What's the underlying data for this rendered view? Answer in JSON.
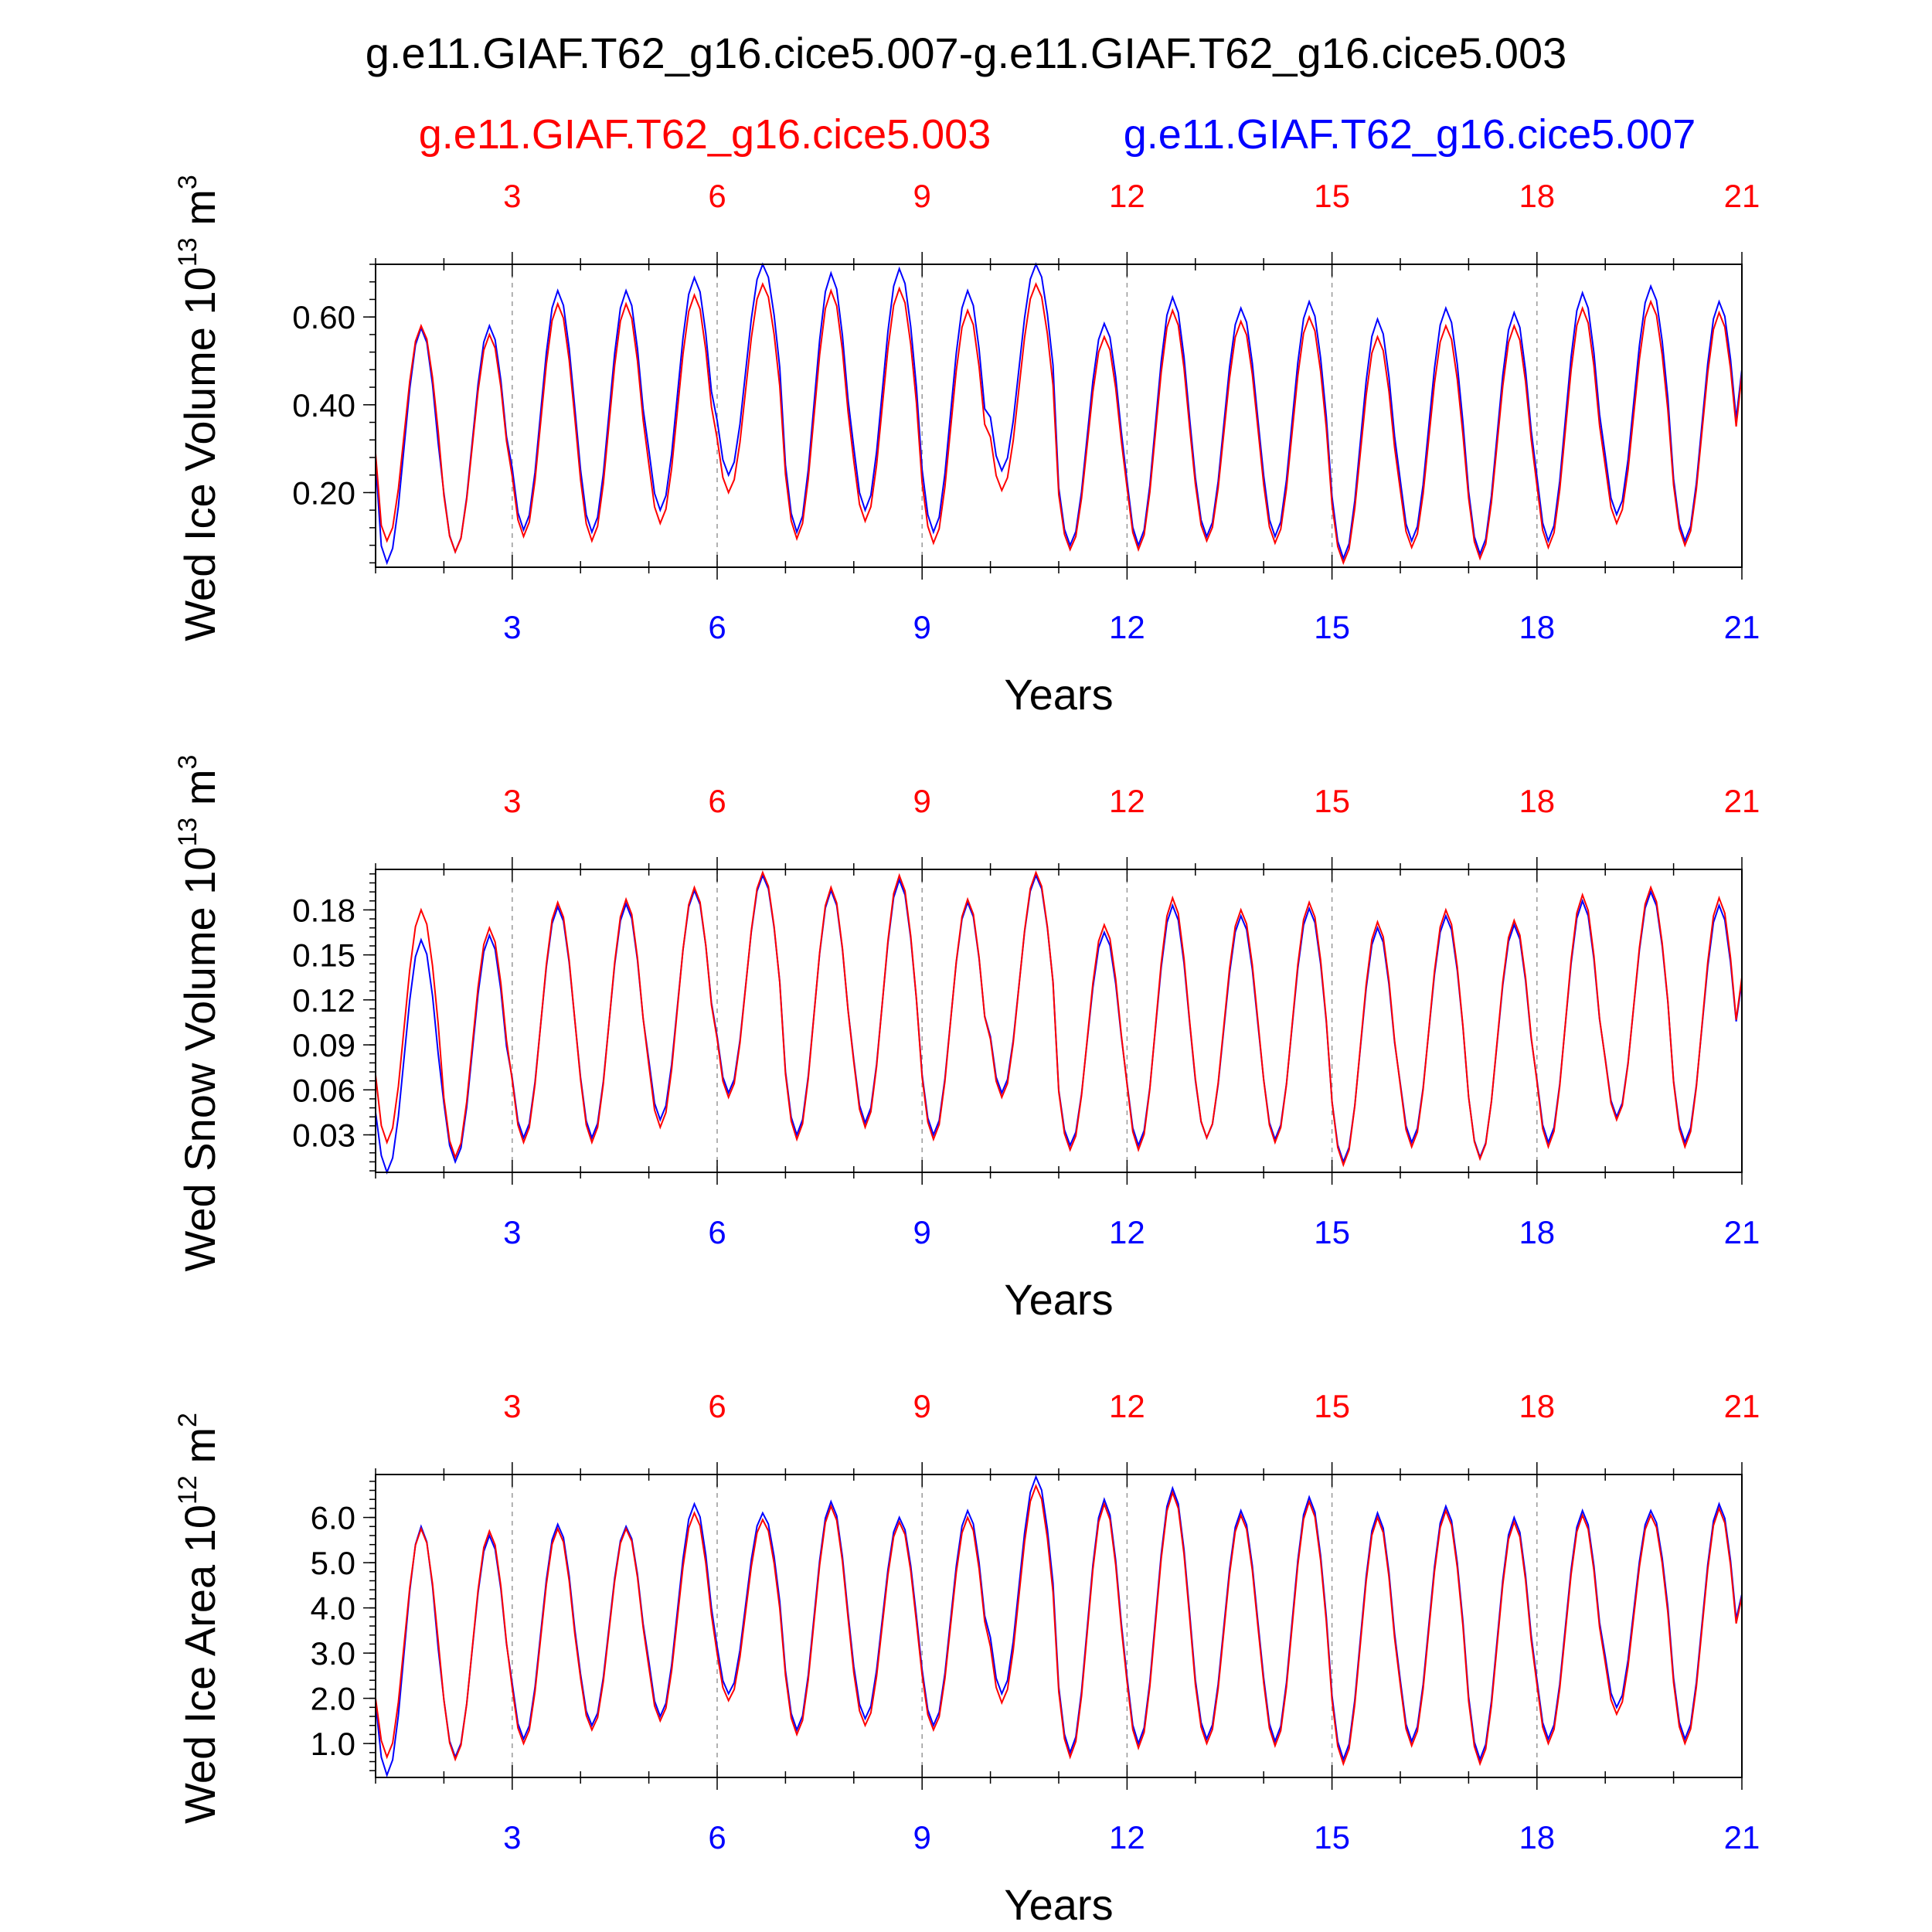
{
  "title": "g.e11.GIAF.T62_g16.cice5.007-g.e11.GIAF.T62_g16.cice5.003",
  "legend": {
    "case_a": "g.e11.GIAF.T62_g16.cice5.003",
    "case_b": "g.e11.GIAF.T62_g16.cice5.007"
  },
  "colors": {
    "case_a": "#ff0000",
    "case_b": "#0000ff",
    "frame": "#000000",
    "grid": "#999999"
  },
  "xticks": [
    "3",
    "6",
    "9",
    "12",
    "15",
    "18",
    "21"
  ],
  "xlabel": "Years",
  "chart_data": [
    {
      "type": "line",
      "ylabel": "Wed Ice Volume 10",
      "ylabel_exp": "13",
      "ylabel_unit": " m",
      "ylabel_unit_exp": "3",
      "xlim": [
        1,
        21
      ],
      "ylim": [
        0.03,
        0.72
      ],
      "yticks": [
        "0.20",
        "0.40",
        "0.60"
      ],
      "ytick_values": [
        0.2,
        0.4,
        0.6
      ],
      "mins_a": [
        0.09,
        0.065,
        0.1,
        0.09,
        0.13,
        0.2,
        0.095,
        0.135,
        0.085,
        0.205,
        0.07,
        0.07,
        0.09,
        0.085,
        0.04,
        0.075,
        0.05,
        0.075,
        0.13,
        0.08
      ],
      "maxs_a": [
        0.58,
        0.56,
        0.63,
        0.63,
        0.65,
        0.675,
        0.66,
        0.665,
        0.615,
        0.675,
        0.555,
        0.615,
        0.59,
        0.6,
        0.555,
        0.58,
        0.58,
        0.62,
        0.635,
        0.61
      ],
      "mins_b": [
        0.04,
        0.065,
        0.115,
        0.11,
        0.16,
        0.24,
        0.11,
        0.16,
        0.11,
        0.25,
        0.08,
        0.08,
        0.1,
        0.1,
        0.05,
        0.09,
        0.06,
        0.09,
        0.15,
        0.09
      ],
      "maxs_b": [
        0.575,
        0.58,
        0.66,
        0.66,
        0.69,
        0.72,
        0.7,
        0.71,
        0.66,
        0.72,
        0.585,
        0.645,
        0.62,
        0.635,
        0.595,
        0.62,
        0.61,
        0.655,
        0.67,
        0.635
      ],
      "end_a": 0.47,
      "end_b": 0.48,
      "start_a": 0.29,
      "start_b": 0.27
    },
    {
      "type": "line",
      "ylabel": "Wed Snow Volume 10",
      "ylabel_exp": "13",
      "ylabel_unit": " m",
      "ylabel_unit_exp": "3",
      "xlim": [
        1,
        21
      ],
      "ylim": [
        0.005,
        0.207
      ],
      "yticks": [
        "0.03",
        "0.06",
        "0.09",
        "0.12",
        "0.15",
        "0.18"
      ],
      "ytick_values": [
        0.03,
        0.06,
        0.09,
        0.12,
        0.15,
        0.18
      ],
      "mins_a": [
        0.025,
        0.015,
        0.025,
        0.025,
        0.035,
        0.055,
        0.027,
        0.035,
        0.027,
        0.055,
        0.02,
        0.02,
        0.028,
        0.025,
        0.01,
        0.022,
        0.014,
        0.022,
        0.04,
        0.022
      ],
      "maxs_a": [
        0.18,
        0.168,
        0.185,
        0.187,
        0.195,
        0.205,
        0.195,
        0.203,
        0.187,
        0.205,
        0.17,
        0.188,
        0.18,
        0.185,
        0.172,
        0.18,
        0.173,
        0.19,
        0.195,
        0.188
      ],
      "mins_b": [
        0.005,
        0.012,
        0.028,
        0.028,
        0.04,
        0.058,
        0.03,
        0.038,
        0.03,
        0.058,
        0.023,
        0.023,
        0.028,
        0.027,
        0.012,
        0.025,
        0.015,
        0.025,
        0.042,
        0.025
      ],
      "maxs_b": [
        0.16,
        0.163,
        0.182,
        0.184,
        0.193,
        0.203,
        0.193,
        0.2,
        0.185,
        0.203,
        0.165,
        0.183,
        0.176,
        0.181,
        0.168,
        0.176,
        0.17,
        0.186,
        0.192,
        0.183
      ],
      "end_a": 0.135,
      "end_b": 0.132,
      "start_a": 0.07,
      "start_b": 0.045
    },
    {
      "type": "line",
      "ylabel": "Wed Ice Area 10",
      "ylabel_exp": "12",
      "ylabel_unit": " m",
      "ylabel_unit_exp": "2",
      "xlim": [
        1,
        21
      ],
      "ylim": [
        0.25,
        6.95
      ],
      "yticks": [
        "1.0",
        "2.0",
        "3.0",
        "4.0",
        "5.0",
        "6.0"
      ],
      "ytick_values": [
        1,
        2,
        3,
        4,
        5,
        6
      ],
      "mins_a": [
        0.7,
        0.65,
        1.0,
        1.3,
        1.5,
        1.95,
        1.2,
        1.4,
        1.3,
        1.9,
        0.7,
        0.9,
        1.0,
        0.95,
        0.55,
        0.95,
        0.55,
        1.0,
        1.65,
        1.0
      ],
      "maxs_a": [
        5.75,
        5.7,
        5.75,
        5.75,
        6.1,
        5.95,
        6.25,
        5.9,
        6.0,
        6.7,
        6.3,
        6.55,
        6.05,
        6.35,
        6.0,
        6.15,
        5.9,
        6.05,
        6.05,
        6.2
      ],
      "mins_b": [
        0.3,
        0.7,
        1.1,
        1.4,
        1.6,
        2.1,
        1.3,
        1.55,
        1.4,
        2.1,
        0.8,
        1.0,
        1.1,
        1.05,
        0.65,
        1.05,
        0.65,
        1.1,
        1.8,
        1.1
      ],
      "maxs_b": [
        5.8,
        5.6,
        5.85,
        5.8,
        6.3,
        6.1,
        6.35,
        6.0,
        6.15,
        6.9,
        6.4,
        6.65,
        6.15,
        6.45,
        6.1,
        6.25,
        6.0,
        6.15,
        6.15,
        6.3
      ],
      "end_a": 4.25,
      "end_b": 4.3,
      "start_a": 2.0,
      "start_b": 1.9
    }
  ]
}
